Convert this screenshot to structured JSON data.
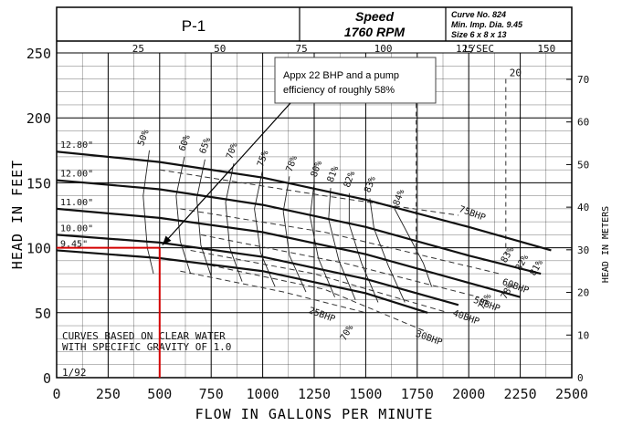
{
  "chart_data": {
    "type": "line",
    "title_block": {
      "pump_name": "P-1",
      "speed_label": "Speed",
      "speed_value": "1760 RPM",
      "curve_no": "Curve No. 824",
      "min_imp": "Min. Imp. Dia. 9.45",
      "size": "Size 6 x 8 x 13"
    },
    "xlabel": "FLOW IN GALLONS PER MINUTE",
    "ylabel": "HEAD IN FEET",
    "ylabel_right": "HEAD IN METERS",
    "secondary_x_unit": "L/SEC",
    "xlim": [
      0,
      2500
    ],
    "ylim": [
      0,
      250
    ],
    "x_ticks": [
      0,
      250,
      500,
      750,
      1000,
      1250,
      1500,
      1750,
      2000,
      2250,
      2500
    ],
    "x_tick_labels": [
      "0",
      "250",
      "500",
      "750",
      "1000",
      "1250",
      "1500",
      "1750",
      "2000",
      "2250",
      "2500"
    ],
    "y_ticks": [
      0,
      50,
      100,
      150,
      200,
      250
    ],
    "y_tick_labels": [
      "0",
      "50",
      "100",
      "150",
      "200",
      "250"
    ],
    "top_ticks_lsec": [
      25,
      50,
      75,
      100,
      125,
      150
    ],
    "top_tick_labels": [
      "25",
      "50",
      "75",
      "100",
      "125",
      "150"
    ],
    "right_ticks_m": [
      0,
      10,
      20,
      30,
      40,
      50,
      60,
      70
    ],
    "right_tick_labels": [
      "0",
      "10",
      "20",
      "30",
      "40",
      "50",
      "60",
      "70"
    ],
    "grid": true,
    "series": [
      {
        "name": "12.80\"",
        "x": [
          0,
          500,
          1000,
          1500,
          2000,
          2400
        ],
        "y": [
          174,
          166,
          154,
          137,
          116,
          98
        ]
      },
      {
        "name": "12.00\"",
        "x": [
          0,
          500,
          1000,
          1500,
          2000,
          2350
        ],
        "y": [
          152,
          145,
          133,
          116,
          94,
          80
        ]
      },
      {
        "name": "11.00\"",
        "x": [
          0,
          500,
          1000,
          1500,
          2000,
          2250
        ],
        "y": [
          130,
          123,
          112,
          95,
          73,
          62
        ]
      },
      {
        "name": "10.00\"",
        "x": [
          0,
          500,
          1000,
          1500,
          1950
        ],
        "y": [
          110,
          104,
          93,
          76,
          56
        ]
      },
      {
        "name": "9.45\"",
        "x": [
          0,
          500,
          1000,
          1500,
          1800
        ],
        "y": [
          98,
          92,
          82,
          65,
          50
        ]
      }
    ],
    "efficiency_labels": [
      "50%",
      "60%",
      "65%",
      "70%",
      "75%",
      "78%",
      "80%",
      "81%",
      "82%",
      "83%",
      "84%",
      "83%",
      "82%",
      "81%",
      "78%",
      "75%",
      "70%"
    ],
    "bhp_labels": [
      "75BHP",
      "60BHP",
      "50BHP",
      "40BHP",
      "30BHP",
      "25BHP"
    ],
    "npsh_labels": [
      "15",
      "20"
    ],
    "notes": [
      "CURVES BASED ON CLEAR WATER",
      "WITH SPECIFIC GRAVITY OF 1.0"
    ],
    "date_code": "1/92",
    "annotation": {
      "text_line1": "Appx 22 BHP and a pump",
      "text_line2": "efficiency of roughly 58%",
      "point": {
        "x": 500,
        "y": 100
      }
    },
    "highlight_color": "#d40000"
  }
}
